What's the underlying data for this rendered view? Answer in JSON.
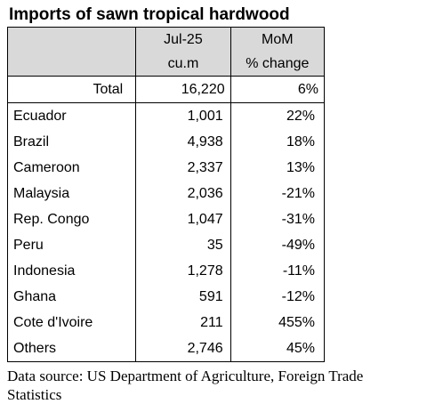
{
  "title": "Imports of sawn tropical hardwood",
  "header": {
    "col2_line1": "Jul-25",
    "col2_line2": "cu.m",
    "col3_line1": "MoM",
    "col3_line2": "% change"
  },
  "total": {
    "label": "Total",
    "volume": "16,220",
    "change": "6%"
  },
  "rows": [
    {
      "country": "Ecuador",
      "volume": "1,001",
      "change": "22%"
    },
    {
      "country": "Brazil",
      "volume": "4,938",
      "change": "18%"
    },
    {
      "country": "Cameroon",
      "volume": "2,337",
      "change": "13%"
    },
    {
      "country": "Malaysia",
      "volume": "2,036",
      "change": "-21%"
    },
    {
      "country": "Rep. Congo",
      "volume": "1,047",
      "change": "-31%"
    },
    {
      "country": "Peru",
      "volume": "35",
      "change": "-49%"
    },
    {
      "country": "Indonesia",
      "volume": "1,278",
      "change": "-11%"
    },
    {
      "country": "Ghana",
      "volume": "591",
      "change": "-12%"
    },
    {
      "country": "Cote d'Ivoire",
      "volume": "211",
      "change": "455%"
    },
    {
      "country": "Others",
      "volume": "2,746",
      "change": "45%"
    }
  ],
  "source_line1": "Data source: US Department of Agriculture, Foreign Trade",
  "source_line2": "Statistics",
  "colors": {
    "header_bg": "#d9d9d9",
    "border": "#000000"
  }
}
